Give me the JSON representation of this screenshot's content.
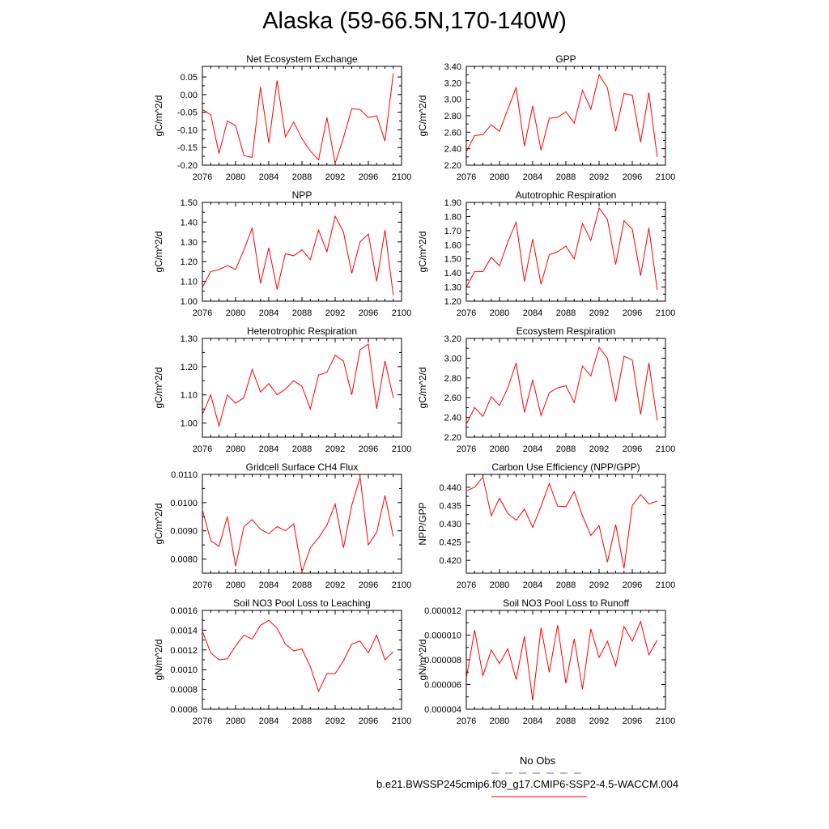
{
  "title": "Alaska (59-66.5N,170-140W)",
  "line_color": "#ff0000",
  "obs_line_color": "#6a6ad8",
  "legend": {
    "obs_label": "No Obs",
    "case_label": "b.e21.BWSSP245cmip6.f09_g17.CMIP6-SSP2-4.5-WACCM.004"
  },
  "chart_data": [
    {
      "type": "line",
      "title": "Net Ecosystem Exchange",
      "ylabel": "gC/m^2/d",
      "xlim": [
        2076,
        2100
      ],
      "ylim": [
        -0.2,
        0.08
      ],
      "xticks": [
        2076,
        2080,
        2084,
        2088,
        2092,
        2096,
        2100
      ],
      "xtick_labels": [
        "2076",
        "2080",
        "2084",
        "2088",
        "2092",
        "2096",
        "2100"
      ],
      "yticks": [
        -0.2,
        -0.15,
        -0.1,
        -0.05,
        0.0,
        0.05
      ],
      "ytick_labels": [
        "-0.20",
        "-0.15",
        "-0.10",
        "-0.05",
        "0.00",
        "0.05"
      ],
      "x": [
        2076,
        2077,
        2078,
        2079,
        2080,
        2081,
        2082,
        2083,
        2084,
        2085,
        2086,
        2087,
        2088,
        2089,
        2090,
        2091,
        2092,
        2093,
        2094,
        2095,
        2096,
        2097,
        2098,
        2099
      ],
      "y": [
        -0.042,
        -0.057,
        -0.167,
        -0.075,
        -0.088,
        -0.173,
        -0.178,
        0.022,
        -0.137,
        0.04,
        -0.12,
        -0.078,
        -0.125,
        -0.16,
        -0.185,
        -0.065,
        -0.195,
        -0.122,
        -0.04,
        -0.042,
        -0.065,
        -0.06,
        -0.132,
        0.06
      ]
    },
    {
      "type": "line",
      "title": "GPP",
      "ylabel": "gC/m^2/d",
      "xlim": [
        2076,
        2100
      ],
      "ylim": [
        2.2,
        3.4
      ],
      "xticks": [
        2076,
        2080,
        2084,
        2088,
        2092,
        2096,
        2100
      ],
      "xtick_labels": [
        "2076",
        "2080",
        "2084",
        "2088",
        "2092",
        "2096",
        "2100"
      ],
      "yticks": [
        2.2,
        2.4,
        2.6,
        2.8,
        3.0,
        3.2,
        3.4
      ],
      "ytick_labels": [
        "2.20",
        "2.40",
        "2.60",
        "2.80",
        "3.00",
        "3.20",
        "3.40"
      ],
      "x": [
        2076,
        2077,
        2078,
        2079,
        2080,
        2081,
        2082,
        2083,
        2084,
        2085,
        2086,
        2087,
        2088,
        2089,
        2090,
        2091,
        2092,
        2093,
        2094,
        2095,
        2096,
        2097,
        2098,
        2099
      ],
      "y": [
        2.36,
        2.56,
        2.57,
        2.69,
        2.61,
        2.88,
        3.14,
        2.43,
        2.92,
        2.38,
        2.77,
        2.78,
        2.85,
        2.71,
        3.11,
        2.88,
        3.3,
        3.14,
        2.61,
        3.07,
        3.05,
        2.48,
        3.08,
        2.3
      ]
    },
    {
      "type": "line",
      "title": "NPP",
      "ylabel": "gC/m^2/d",
      "xlim": [
        2076,
        2100
      ],
      "ylim": [
        1.0,
        1.5
      ],
      "xticks": [
        2076,
        2080,
        2084,
        2088,
        2092,
        2096,
        2100
      ],
      "xtick_labels": [
        "2076",
        "2080",
        "2084",
        "2088",
        "2092",
        "2096",
        "2100"
      ],
      "yticks": [
        1.0,
        1.1,
        1.2,
        1.3,
        1.4,
        1.5
      ],
      "ytick_labels": [
        "1.00",
        "1.10",
        "1.20",
        "1.30",
        "1.40",
        "1.50"
      ],
      "x": [
        2076,
        2077,
        2078,
        2079,
        2080,
        2081,
        2082,
        2083,
        2084,
        2085,
        2086,
        2087,
        2088,
        2089,
        2090,
        2091,
        2092,
        2093,
        2094,
        2095,
        2096,
        2097,
        2098,
        2099
      ],
      "y": [
        1.07,
        1.15,
        1.16,
        1.18,
        1.16,
        1.26,
        1.37,
        1.09,
        1.27,
        1.06,
        1.24,
        1.23,
        1.26,
        1.21,
        1.36,
        1.25,
        1.43,
        1.35,
        1.14,
        1.3,
        1.34,
        1.1,
        1.36,
        1.03
      ]
    },
    {
      "type": "line",
      "title": "Autotrophic Respiration",
      "ylabel": "gC/m^2/d",
      "xlim": [
        2076,
        2100
      ],
      "ylim": [
        1.2,
        1.9
      ],
      "xticks": [
        2076,
        2080,
        2084,
        2088,
        2092,
        2096,
        2100
      ],
      "xtick_labels": [
        "2076",
        "2080",
        "2084",
        "2088",
        "2092",
        "2096",
        "2100"
      ],
      "yticks": [
        1.2,
        1.3,
        1.4,
        1.5,
        1.6,
        1.7,
        1.8,
        1.9
      ],
      "ytick_labels": [
        "1.20",
        "1.30",
        "1.40",
        "1.50",
        "1.60",
        "1.70",
        "1.80",
        "1.90"
      ],
      "x": [
        2076,
        2077,
        2078,
        2079,
        2080,
        2081,
        2082,
        2083,
        2084,
        2085,
        2086,
        2087,
        2088,
        2089,
        2090,
        2091,
        2092,
        2093,
        2094,
        2095,
        2096,
        2097,
        2098,
        2099
      ],
      "y": [
        1.3,
        1.41,
        1.41,
        1.51,
        1.45,
        1.62,
        1.76,
        1.34,
        1.64,
        1.32,
        1.53,
        1.55,
        1.59,
        1.5,
        1.75,
        1.63,
        1.86,
        1.78,
        1.46,
        1.77,
        1.71,
        1.38,
        1.72,
        1.28
      ]
    },
    {
      "type": "line",
      "title": "Heterotrophic Respiration",
      "ylabel": "gC/m^2/d",
      "xlim": [
        2076,
        2100
      ],
      "ylim": [
        0.95,
        1.3
      ],
      "xticks": [
        2076,
        2080,
        2084,
        2088,
        2092,
        2096,
        2100
      ],
      "xtick_labels": [
        "2076",
        "2080",
        "2084",
        "2088",
        "2092",
        "2096",
        "2100"
      ],
      "yticks": [
        1.0,
        1.1,
        1.2,
        1.3
      ],
      "ytick_labels": [
        "1.00",
        "1.10",
        "1.20",
        "1.30"
      ],
      "x": [
        2076,
        2077,
        2078,
        2079,
        2080,
        2081,
        2082,
        2083,
        2084,
        2085,
        2086,
        2087,
        2088,
        2089,
        2090,
        2091,
        2092,
        2093,
        2094,
        2095,
        2096,
        2097,
        2098,
        2099
      ],
      "y": [
        1.03,
        1.1,
        0.99,
        1.1,
        1.07,
        1.09,
        1.19,
        1.11,
        1.14,
        1.1,
        1.12,
        1.15,
        1.13,
        1.05,
        1.17,
        1.18,
        1.24,
        1.22,
        1.1,
        1.26,
        1.28,
        1.05,
        1.22,
        1.09
      ]
    },
    {
      "type": "line",
      "title": "Ecosystem Respiration",
      "ylabel": "gC/m^2/d",
      "xlim": [
        2076,
        2100
      ],
      "ylim": [
        2.2,
        3.2
      ],
      "xticks": [
        2076,
        2080,
        2084,
        2088,
        2092,
        2096,
        2100
      ],
      "xtick_labels": [
        "2076",
        "2080",
        "2084",
        "2088",
        "2092",
        "2096",
        "2100"
      ],
      "yticks": [
        2.2,
        2.4,
        2.6,
        2.8,
        3.0,
        3.2
      ],
      "ytick_labels": [
        "2.20",
        "2.40",
        "2.60",
        "2.80",
        "3.00",
        "3.20"
      ],
      "x": [
        2076,
        2077,
        2078,
        2079,
        2080,
        2081,
        2082,
        2083,
        2084,
        2085,
        2086,
        2087,
        2088,
        2089,
        2090,
        2091,
        2092,
        2093,
        2094,
        2095,
        2096,
        2097,
        2098,
        2099
      ],
      "y": [
        2.33,
        2.5,
        2.41,
        2.61,
        2.52,
        2.7,
        2.95,
        2.45,
        2.78,
        2.42,
        2.65,
        2.7,
        2.72,
        2.55,
        2.92,
        2.82,
        3.11,
        3.0,
        2.56,
        3.02,
        2.98,
        2.43,
        2.95,
        2.37
      ]
    },
    {
      "type": "line",
      "title": "Gridcell Surface CH4 Flux",
      "ylabel": "gC/m^2/d",
      "xlim": [
        2076,
        2100
      ],
      "ylim": [
        0.0075,
        0.011
      ],
      "xticks": [
        2076,
        2080,
        2084,
        2088,
        2092,
        2096,
        2100
      ],
      "xtick_labels": [
        "2076",
        "2080",
        "2084",
        "2088",
        "2092",
        "2096",
        "2100"
      ],
      "yticks": [
        0.008,
        0.009,
        0.01,
        0.011
      ],
      "ytick_labels": [
        "0.0080",
        "0.0090",
        "0.0100",
        "0.0110"
      ],
      "x": [
        2076,
        2077,
        2078,
        2079,
        2080,
        2081,
        2082,
        2083,
        2084,
        2085,
        2086,
        2087,
        2088,
        2089,
        2090,
        2091,
        2092,
        2093,
        2094,
        2095,
        2096,
        2097,
        2098,
        2099
      ],
      "y": [
        0.00975,
        0.00865,
        0.00845,
        0.0095,
        0.00775,
        0.00915,
        0.0094,
        0.00905,
        0.0089,
        0.00915,
        0.009,
        0.00925,
        0.00755,
        0.0084,
        0.00875,
        0.0092,
        0.00995,
        0.0084,
        0.0099,
        0.0109,
        0.0085,
        0.00895,
        0.01025,
        0.0088
      ]
    },
    {
      "type": "line",
      "title": "Carbon Use Efficiency (NPP/GPP)",
      "ylabel": "NPP/GPP",
      "xlim": [
        2076,
        2100
      ],
      "ylim": [
        0.4165,
        0.4435
      ],
      "xticks": [
        2076,
        2080,
        2084,
        2088,
        2092,
        2096,
        2100
      ],
      "xtick_labels": [
        "2076",
        "2080",
        "2084",
        "2088",
        "2092",
        "2096",
        "2100"
      ],
      "yticks": [
        0.42,
        0.425,
        0.43,
        0.435,
        0.44
      ],
      "ytick_labels": [
        "0.420",
        "0.425",
        "0.430",
        "0.435",
        "0.440"
      ],
      "x": [
        2076,
        2077,
        2078,
        2079,
        2080,
        2081,
        2082,
        2083,
        2084,
        2085,
        2086,
        2087,
        2088,
        2089,
        2090,
        2091,
        2092,
        2093,
        2094,
        2095,
        2096,
        2097,
        2098,
        2099
      ],
      "y": [
        0.439,
        0.44,
        0.4428,
        0.4322,
        0.437,
        0.4328,
        0.431,
        0.434,
        0.429,
        0.4348,
        0.441,
        0.4348,
        0.4347,
        0.4388,
        0.4322,
        0.4268,
        0.4295,
        0.4195,
        0.4298,
        0.4178,
        0.435,
        0.438,
        0.4354,
        0.4362
      ]
    },
    {
      "type": "line",
      "title": "Soil NO3 Pool Loss to Leaching",
      "ylabel": "gN/m^2/d",
      "xlim": [
        2076,
        2100
      ],
      "ylim": [
        0.0006,
        0.0016
      ],
      "xticks": [
        2076,
        2080,
        2084,
        2088,
        2092,
        2096,
        2100
      ],
      "xtick_labels": [
        "2076",
        "2080",
        "2084",
        "2088",
        "2092",
        "2096",
        "2100"
      ],
      "yticks": [
        0.0006,
        0.0008,
        0.001,
        0.0012,
        0.0014,
        0.0016
      ],
      "ytick_labels": [
        "0.0006",
        "0.0008",
        "0.0010",
        "0.0012",
        "0.0014",
        "0.0016"
      ],
      "x": [
        2076,
        2077,
        2078,
        2079,
        2080,
        2081,
        2082,
        2083,
        2084,
        2085,
        2086,
        2087,
        2088,
        2089,
        2090,
        2091,
        2092,
        2093,
        2094,
        2095,
        2096,
        2097,
        2098,
        2099
      ],
      "y": [
        0.00139,
        0.00117,
        0.0011,
        0.00111,
        0.00124,
        0.00135,
        0.00131,
        0.00145,
        0.0015,
        0.00142,
        0.00126,
        0.00119,
        0.00121,
        0.00103,
        0.00078,
        0.00096,
        0.00096,
        0.00109,
        0.00126,
        0.00129,
        0.00117,
        0.00135,
        0.0011,
        0.00118
      ]
    },
    {
      "type": "line",
      "title": "Soil NO3 Pool Loss to Runoff",
      "ylabel": "gN/m^2/d",
      "xlim": [
        2076,
        2100
      ],
      "ylim": [
        4e-06,
        1.2e-05
      ],
      "xticks": [
        2076,
        2080,
        2084,
        2088,
        2092,
        2096,
        2100
      ],
      "xtick_labels": [
        "2076",
        "2080",
        "2084",
        "2088",
        "2092",
        "2096",
        "2100"
      ],
      "yticks": [
        4e-06,
        6e-06,
        8e-06,
        1e-05,
        1.2e-05
      ],
      "ytick_labels": [
        "0.000004",
        "0.000006",
        "0.000008",
        "0.000010",
        "0.000012"
      ],
      "x": [
        2076,
        2077,
        2078,
        2079,
        2080,
        2081,
        2082,
        2083,
        2084,
        2085,
        2086,
        2087,
        2088,
        2089,
        2090,
        2091,
        2092,
        2093,
        2094,
        2095,
        2096,
        2097,
        2098,
        2099
      ],
      "y": [
        6.5e-06,
        1.04e-05,
        6.7e-06,
        8.8e-06,
        7.7e-06,
        8.9e-06,
        6.4e-06,
        9.9e-06,
        4.7e-06,
        1.06e-05,
        7e-06,
        1.08e-05,
        6.1e-06,
        9.7e-06,
        5.6e-06,
        1.05e-05,
        8.2e-06,
        9.5e-06,
        7.5e-06,
        1.07e-05,
        9.5e-06,
        1.11e-05,
        8.4e-06,
        9.6e-06
      ]
    }
  ]
}
